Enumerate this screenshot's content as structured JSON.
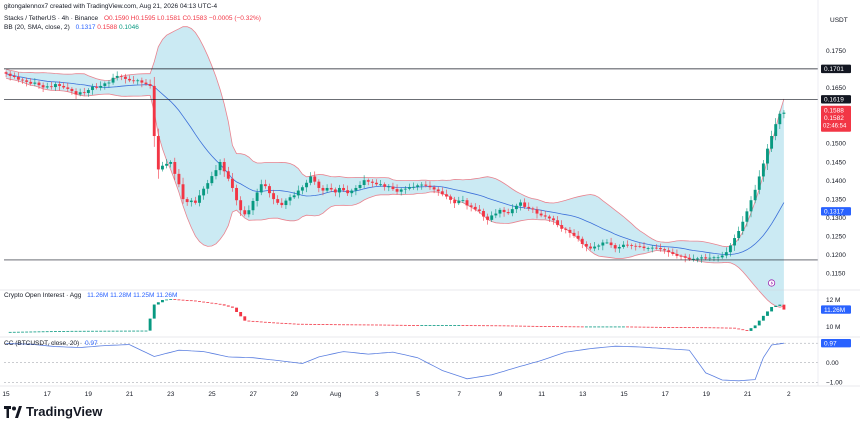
{
  "header": {
    "created_by": "gitongalennox7 created with TradingView.com, Aug 21, 2026 04:13 UTC-4",
    "symbol": "Stacks / TetherUS · 4h · Binance",
    "ohlc": {
      "o": "O0.1590",
      "h": "H0.1595",
      "l": "L0.1581",
      "c": "C0.1583",
      "chg": "−0.0005 (−0.32%)"
    },
    "bb": {
      "label": "BB (20, SMA, close, 2)",
      "v1": "0.1317",
      "v2": "0.1588",
      "v3": "0.1046"
    },
    "oi": {
      "label": "Crypto Open Interest · Agg",
      "v1": "11.26M",
      "v2": "11.28M",
      "v3": "11.25M",
      "v4": "11.26M"
    },
    "cc": {
      "label": "CC (BTCUSDT, close, 20)",
      "v1": "0.97"
    }
  },
  "brand": "TradingView",
  "colors": {
    "up": "#089981",
    "down": "#f23645",
    "band_fill": "#b9e3ef",
    "band_edge": "#e8838f",
    "basis": "#3b6fd9",
    "cc_line": "#5b7fe0",
    "level": "#131722"
  },
  "chart_data": {
    "type": "candlestick",
    "price_axis": {
      "unit": "USDT",
      "ticks": [
        "0.1750",
        "0.1650",
        "0.1550",
        "0.1500",
        "0.1450",
        "0.1400",
        "0.1350",
        "0.1300",
        "0.1250",
        "0.1200",
        "0.1150"
      ],
      "ylim": [
        0.1105,
        0.1795
      ]
    },
    "price_labels": {
      "level_1": "0.1701",
      "level_2": "0.1619",
      "price": "0.1588",
      "price_2": "0.1582",
      "countdown": "02:46:54",
      "basis": "0.1317"
    },
    "horizontal_levels": [
      0.1701,
      0.1619,
      0.1186
    ],
    "x_axis_ticks": [
      "15",
      "17",
      "19",
      "21",
      "23",
      "25",
      "27",
      "29",
      "Aug",
      "3",
      "5",
      "7",
      "9",
      "11",
      "13",
      "15",
      "17",
      "19",
      "21",
      "2"
    ],
    "candle_count": 190,
    "closes": [
      0.1688,
      0.1682,
      0.1679,
      0.1672,
      0.167,
      0.1666,
      0.1661,
      0.1664,
      0.1657,
      0.1651,
      0.1654,
      0.1652,
      0.166,
      0.1655,
      0.1651,
      0.1647,
      0.1641,
      0.1632,
      0.1638,
      0.1636,
      0.1644,
      0.1653,
      0.165,
      0.1655,
      0.1662,
      0.1664,
      0.1677,
      0.1682,
      0.168,
      0.1674,
      0.167,
      0.1668,
      0.167,
      0.1664,
      0.166,
      0.1655,
      0.152,
      0.143,
      0.144,
      0.1445,
      0.145,
      0.1418,
      0.139,
      0.135,
      0.1342,
      0.1346,
      0.134,
      0.136,
      0.1378,
      0.1393,
      0.1412,
      0.1428,
      0.145,
      0.1425,
      0.1405,
      0.138,
      0.1347,
      0.132,
      0.1309,
      0.132,
      0.1345,
      0.1368,
      0.139,
      0.1385,
      0.1366,
      0.135,
      0.134,
      0.1334,
      0.1346,
      0.1355,
      0.136,
      0.1373,
      0.1382,
      0.1394,
      0.1411,
      0.1397,
      0.138,
      0.1373,
      0.138,
      0.1376,
      0.1368,
      0.138,
      0.1374,
      0.1366,
      0.1373,
      0.138,
      0.1388,
      0.1401,
      0.1397,
      0.1394,
      0.139,
      0.139,
      0.1383,
      0.1384,
      0.1377,
      0.137,
      0.1376,
      0.1378,
      0.1382,
      0.1383,
      0.1387,
      0.1389,
      0.1386,
      0.1382,
      0.1376,
      0.1371,
      0.1363,
      0.1357,
      0.1348,
      0.1339,
      0.1346,
      0.1347,
      0.1333,
      0.1329,
      0.1322,
      0.1318,
      0.1303,
      0.1294,
      0.1306,
      0.1311,
      0.1321,
      0.1315,
      0.1312,
      0.1323,
      0.1332,
      0.1341,
      0.1329,
      0.1325,
      0.1322,
      0.1311,
      0.1306,
      0.1303,
      0.1298,
      0.1293,
      0.128,
      0.127,
      0.1267,
      0.1259,
      0.1251,
      0.1243,
      0.1229,
      0.1222,
      0.1217,
      0.1222,
      0.1225,
      0.1233,
      0.1233,
      0.1226,
      0.1217,
      0.1221,
      0.1227,
      0.1226,
      0.1224,
      0.1223,
      0.1222,
      0.1218,
      0.1218,
      0.1219,
      0.1218,
      0.1215,
      0.1212,
      0.1207,
      0.1202,
      0.1197,
      0.1196,
      0.1192,
      0.1188,
      0.1189,
      0.119,
      0.1193,
      0.119,
      0.1192,
      0.1193,
      0.1193,
      0.1198,
      0.1207,
      0.1225,
      0.1245,
      0.1264,
      0.1289,
      0.1317,
      0.1347,
      0.1375,
      0.1411,
      0.1446,
      0.1486,
      0.152,
      0.1552,
      0.158,
      0.1583
    ],
    "open_interest": {
      "axis_ticks": [
        "12 M",
        "10 M"
      ],
      "last_label": "11.26M",
      "ylim_millions": [
        9.4,
        12.4
      ],
      "key_points": [
        [
          0,
          9.62
        ],
        [
          16,
          9.7
        ],
        [
          34,
          9.72
        ],
        [
          35,
          10.6
        ],
        [
          36,
          11.63
        ],
        [
          38,
          11.96
        ],
        [
          40,
          12.03
        ],
        [
          41,
          12.0
        ],
        [
          43,
          11.96
        ],
        [
          45,
          11.92
        ],
        [
          47,
          11.84
        ],
        [
          49,
          11.76
        ],
        [
          52,
          11.64
        ],
        [
          55,
          11.4
        ],
        [
          58,
          10.45
        ],
        [
          64,
          10.32
        ],
        [
          70,
          10.22
        ],
        [
          80,
          10.18
        ],
        [
          90,
          10.16
        ],
        [
          100,
          10.12
        ],
        [
          110,
          10.12
        ],
        [
          120,
          10.1
        ],
        [
          130,
          10.05
        ],
        [
          140,
          10.02
        ],
        [
          150,
          10.02
        ],
        [
          160,
          9.98
        ],
        [
          170,
          9.96
        ],
        [
          176,
          9.93
        ],
        [
          180,
          9.7
        ],
        [
          182,
          10.1
        ],
        [
          184,
          10.8
        ],
        [
          186,
          11.45
        ],
        [
          188,
          11.62
        ],
        [
          189,
          11.26
        ]
      ]
    },
    "correlation": {
      "axis_ticks": [
        "0.97",
        "0.00",
        "−1.00"
      ],
      "last_label": "0.97",
      "ylim": [
        -1.08,
        1.08
      ],
      "key_points": [
        [
          0,
          0.95
        ],
        [
          6,
          0.92
        ],
        [
          12,
          0.8
        ],
        [
          18,
          0.75
        ],
        [
          24,
          0.85
        ],
        [
          30,
          0.9
        ],
        [
          36,
          0.3
        ],
        [
          42,
          0.62
        ],
        [
          48,
          0.55
        ],
        [
          54,
          0.28
        ],
        [
          60,
          0.24
        ],
        [
          66,
          0.1
        ],
        [
          72,
          -0.05
        ],
        [
          76,
          0.28
        ],
        [
          82,
          0.55
        ],
        [
          88,
          0.42
        ],
        [
          94,
          0.52
        ],
        [
          100,
          0.24
        ],
        [
          106,
          -0.4
        ],
        [
          112,
          -0.82
        ],
        [
          118,
          -0.62
        ],
        [
          124,
          -0.25
        ],
        [
          130,
          0.1
        ],
        [
          136,
          0.52
        ],
        [
          142,
          0.7
        ],
        [
          148,
          0.82
        ],
        [
          154,
          0.78
        ],
        [
          160,
          0.7
        ],
        [
          166,
          0.62
        ],
        [
          168,
          0.05
        ],
        [
          170,
          -0.52
        ],
        [
          174,
          -0.88
        ],
        [
          178,
          -0.92
        ],
        [
          182,
          -0.86
        ],
        [
          184,
          0.25
        ],
        [
          186,
          0.88
        ],
        [
          189,
          0.97
        ]
      ]
    }
  }
}
